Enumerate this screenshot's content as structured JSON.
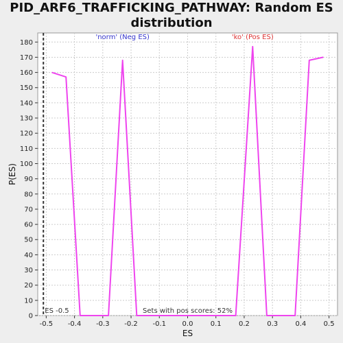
{
  "chart_data": {
    "type": "line",
    "title": "PID_ARF6_TRAFFICKING_PATHWAY: Random ES distribution",
    "xlabel": "ES",
    "ylabel": "P(ES)",
    "xlim": [
      -0.53,
      0.53
    ],
    "ylim": [
      0,
      186
    ],
    "xticks": [
      -0.5,
      -0.4,
      -0.3,
      -0.2,
      -0.1,
      0.0,
      0.1,
      0.2,
      0.3,
      0.4,
      0.5
    ],
    "xtick_labels": [
      "-0.5",
      "-0.4",
      "-0.3",
      "-0.2",
      "-0.1",
      "0.0",
      "0.1",
      "0.2",
      "0.3",
      "0.4",
      "0.5"
    ],
    "yticks": [
      0,
      10,
      20,
      30,
      40,
      50,
      60,
      70,
      80,
      90,
      100,
      110,
      120,
      130,
      140,
      150,
      160,
      170,
      180
    ],
    "grid": true,
    "series": [
      {
        "color": "#ee44ee",
        "x": [
          -0.48,
          -0.43,
          -0.38,
          -0.33,
          -0.28,
          -0.23,
          -0.18,
          -0.13,
          -0.08,
          -0.03,
          0.02,
          0.07,
          0.12,
          0.17,
          0.23,
          0.28,
          0.33,
          0.38,
          0.43,
          0.48
        ],
        "y": [
          160,
          157,
          0,
          0,
          0,
          168,
          0,
          0,
          0,
          0,
          0,
          0,
          0,
          0,
          177,
          0,
          0,
          0,
          168,
          170
        ]
      }
    ],
    "marker_line": {
      "x": -0.51,
      "style": "dashed",
      "color": "#333333"
    },
    "annotations": {
      "neg_label": {
        "text": "'norm' (Neg ES)",
        "color": "#3333cc",
        "x": -0.23,
        "y": 181
      },
      "pos_label": {
        "text": "'ko' (Pos ES)",
        "color": "#dd3333",
        "x": 0.23,
        "y": 181
      },
      "es_label": {
        "text": "ES -0.5",
        "color": "#333333",
        "x": -0.505,
        "y": 1
      },
      "pos_scores": {
        "text": "Sets with pos scores: 52%",
        "color": "#333333",
        "x": 0.0,
        "y": 1
      }
    },
    "colors": {
      "plot_bg": "#ffffff",
      "grid": "#cccccc"
    }
  }
}
